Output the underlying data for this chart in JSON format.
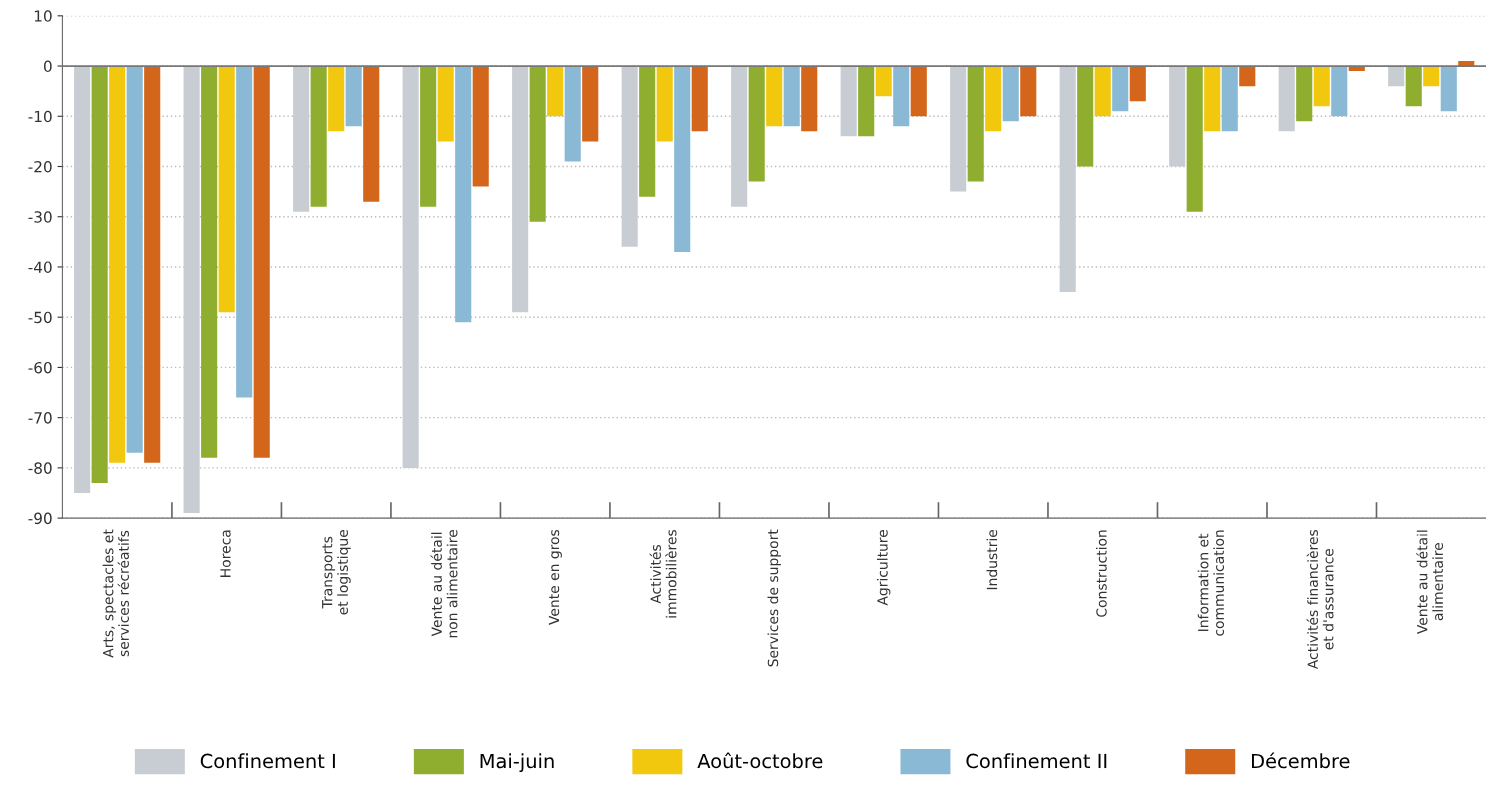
{
  "chart_data": {
    "type": "bar",
    "categories": [
      "Arts, spectacles et\nservices récréatifs",
      "Horeca",
      "Transports\net logistique",
      "Vente au détail\nnon alimentaire",
      "Vente en gros",
      "Activités\nimmobilières",
      "Services de support",
      "Agriculture",
      "Industrie",
      "Construction",
      "Information et\ncommunication",
      "Activités financières\net d'assurance",
      "Vente au détail\nalimentaire"
    ],
    "series": [
      {
        "name": "Confinement I",
        "color": "#c8cdd3",
        "values": [
          -85,
          -89,
          -29,
          -80,
          -49,
          -36,
          -28,
          -14,
          -25,
          -45,
          -20,
          -13,
          -4
        ]
      },
      {
        "name": "Mai-juin",
        "color": "#8fae2f",
        "values": [
          -83,
          -78,
          -28,
          -28,
          -31,
          -26,
          -23,
          -14,
          -23,
          -20,
          -29,
          -11,
          -8
        ]
      },
      {
        "name": "Août-octobre",
        "color": "#f2c80f",
        "values": [
          -79,
          -49,
          -13,
          -15,
          -10,
          -15,
          -12,
          -6,
          -13,
          -10,
          -13,
          -8,
          -4
        ]
      },
      {
        "name": "Confinement II",
        "color": "#8ab9d6",
        "values": [
          -77,
          -66,
          -12,
          -51,
          -19,
          -37,
          -12,
          -12,
          -11,
          -9,
          -13,
          -10,
          -9
        ]
      },
      {
        "name": "Décembre",
        "color": "#d4661c",
        "values": [
          -79,
          -78,
          -27,
          -24,
          -15,
          -13,
          -13,
          -10,
          -10,
          -7,
          -4,
          -1,
          1
        ]
      }
    ],
    "ylim": [
      -90,
      10
    ],
    "yticks": [
      -90,
      -80,
      -70,
      -60,
      -50,
      -40,
      -30,
      -20,
      -10,
      0,
      10
    ],
    "grid": "y",
    "legend": "bottom"
  }
}
